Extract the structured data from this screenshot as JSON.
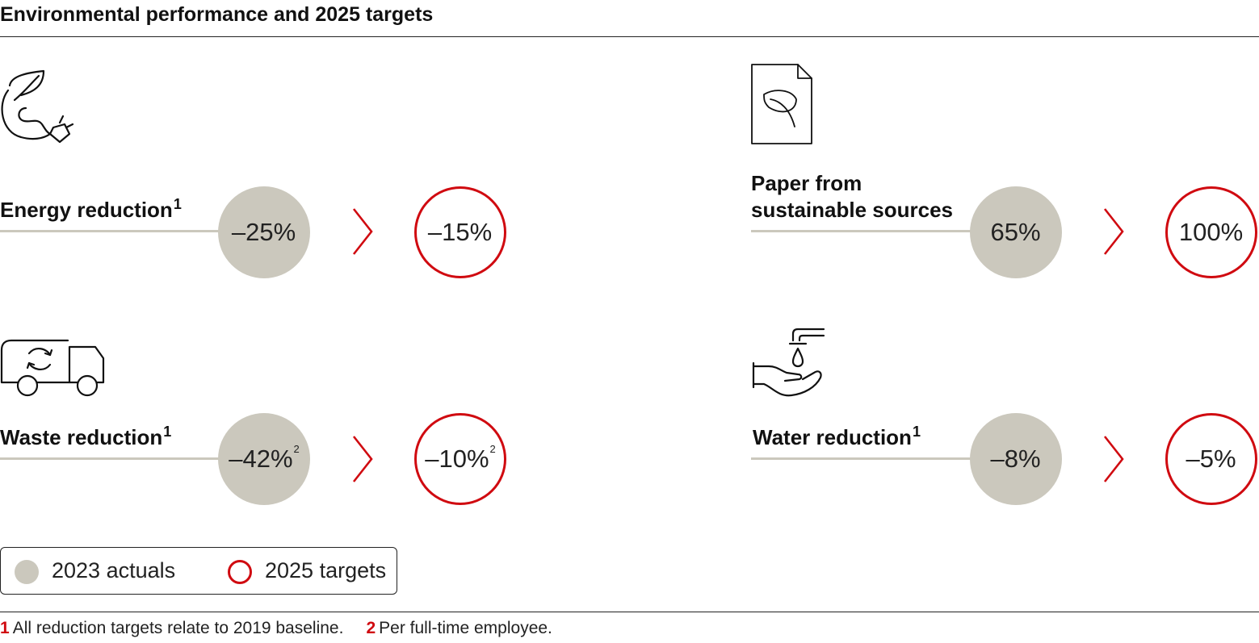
{
  "title": "Environmental performance and 2025 targets",
  "colors": {
    "actual_fill": "#cbc8bd",
    "target_stroke": "#d00a10",
    "chevron": "#d00a10",
    "text": "#111111"
  },
  "chart_data": {
    "type": "table",
    "title": "Environmental performance and 2025 targets",
    "columns": [
      "2023 actuals",
      "2025 targets"
    ],
    "metrics": [
      {
        "name": "Energy reduction",
        "footnote": "1",
        "icon": "leaf-plug-icon",
        "actual": "–25%",
        "actual_note": "",
        "target": "–15%",
        "target_note": "",
        "actual_value": -25,
        "target_value": -15
      },
      {
        "name_line1": "Paper from",
        "name_line2": "sustainable sources",
        "footnote": "",
        "icon": "paper-leaf-icon",
        "actual": "65%",
        "actual_note": "",
        "target": "100%",
        "target_note": "",
        "actual_value": 65,
        "target_value": 100
      },
      {
        "name": "Waste reduction",
        "footnote": "1",
        "icon": "recycling-truck-icon",
        "actual": "–42%",
        "actual_note": "2",
        "target": "–10%",
        "target_note": "2",
        "actual_value": -42,
        "target_value": -10
      },
      {
        "name": "Water reduction",
        "footnote": "1",
        "icon": "water-tap-hand-icon",
        "actual": "–8%",
        "actual_note": "",
        "target": "–5%",
        "target_note": "",
        "actual_value": -8,
        "target_value": -5
      }
    ],
    "legend": [
      {
        "label": "2023 actuals",
        "style": "filled"
      },
      {
        "label": "2025 targets",
        "style": "outline"
      }
    ],
    "footnotes": [
      {
        "num": "1",
        "text": "All reduction targets relate to 2019 baseline."
      },
      {
        "num": "2",
        "text": "Per full-time employee."
      }
    ]
  }
}
